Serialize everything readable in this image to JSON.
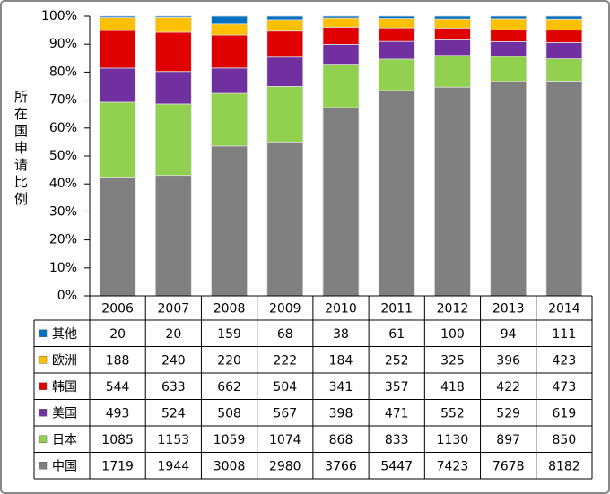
{
  "chart_data": {
    "type": "bar",
    "stacking": "percent",
    "y_label": "所在国申请比例",
    "categories": [
      "2006",
      "2007",
      "2008",
      "2009",
      "2010",
      "2011",
      "2012",
      "2013",
      "2014"
    ],
    "series": [
      {
        "name": "中国",
        "color": "#808080",
        "values": [
          1719,
          1944,
          3008,
          2980,
          3766,
          5447,
          7423,
          7678,
          8182
        ]
      },
      {
        "name": "日本",
        "color": "#92d050",
        "values": [
          1085,
          1153,
          1059,
          1074,
          868,
          833,
          1130,
          897,
          850
        ]
      },
      {
        "name": "美国",
        "color": "#7030a0",
        "values": [
          493,
          524,
          508,
          567,
          398,
          471,
          552,
          529,
          619
        ]
      },
      {
        "name": "韩国",
        "color": "#e00000",
        "values": [
          544,
          633,
          662,
          504,
          341,
          357,
          418,
          422,
          473
        ]
      },
      {
        "name": "欧洲",
        "color": "#ffc000",
        "values": [
          188,
          240,
          220,
          222,
          184,
          252,
          325,
          396,
          423
        ]
      },
      {
        "name": "其他",
        "color": "#0070c0",
        "values": [
          20,
          20,
          159,
          68,
          38,
          61,
          100,
          94,
          111
        ]
      }
    ],
    "ylim": [
      0,
      100
    ],
    "yticks": [
      {
        "value": 0,
        "label": "0%"
      },
      {
        "value": 10,
        "label": "10%"
      },
      {
        "value": 20,
        "label": "20%"
      },
      {
        "value": 30,
        "label": "30%"
      },
      {
        "value": 40,
        "label": "40%"
      },
      {
        "value": 50,
        "label": "50%"
      },
      {
        "value": 60,
        "label": "60%"
      },
      {
        "value": 70,
        "label": "70%"
      },
      {
        "value": 80,
        "label": "80%"
      },
      {
        "value": 90,
        "label": "90%"
      },
      {
        "value": 100,
        "label": "100%"
      }
    ]
  }
}
